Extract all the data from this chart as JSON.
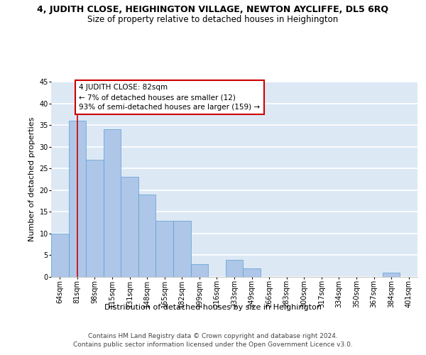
{
  "title_main": "4, JUDITH CLOSE, HEIGHINGTON VILLAGE, NEWTON AYCLIFFE, DL5 6RQ",
  "title_sub": "Size of property relative to detached houses in Heighington",
  "xlabel": "Distribution of detached houses by size in Heighington",
  "ylabel": "Number of detached properties",
  "categories": [
    "64sqm",
    "81sqm",
    "98sqm",
    "115sqm",
    "131sqm",
    "148sqm",
    "165sqm",
    "182sqm",
    "199sqm",
    "216sqm",
    "233sqm",
    "249sqm",
    "266sqm",
    "283sqm",
    "300sqm",
    "317sqm",
    "334sqm",
    "350sqm",
    "367sqm",
    "384sqm",
    "401sqm"
  ],
  "values": [
    10,
    36,
    27,
    34,
    23,
    19,
    13,
    13,
    3,
    0,
    4,
    2,
    0,
    0,
    0,
    0,
    0,
    0,
    0,
    1,
    0
  ],
  "bar_color": "#aec6e8",
  "bar_edgecolor": "#5a9fd4",
  "background_color": "#dde8f5",
  "grid_color": "#ffffff",
  "vline_x": 1.0,
  "vline_color": "#cc0000",
  "annotation_text": "4 JUDITH CLOSE: 82sqm\n← 7% of detached houses are smaller (12)\n93% of semi-detached houses are larger (159) →",
  "annotation_box_edgecolor": "#cc0000",
  "annotation_box_facecolor": "#ffffff",
  "ylim": [
    0,
    45
  ],
  "yticks": [
    0,
    5,
    10,
    15,
    20,
    25,
    30,
    35,
    40,
    45
  ],
  "footer_line1": "Contains HM Land Registry data © Crown copyright and database right 2024.",
  "footer_line2": "Contains public sector information licensed under the Open Government Licence v3.0.",
  "title_fontsize": 9,
  "subtitle_fontsize": 8.5,
  "axis_label_fontsize": 8,
  "tick_fontsize": 7,
  "ylabel_fontsize": 8,
  "footer_fontsize": 6.5,
  "annotation_fontsize": 7.5
}
